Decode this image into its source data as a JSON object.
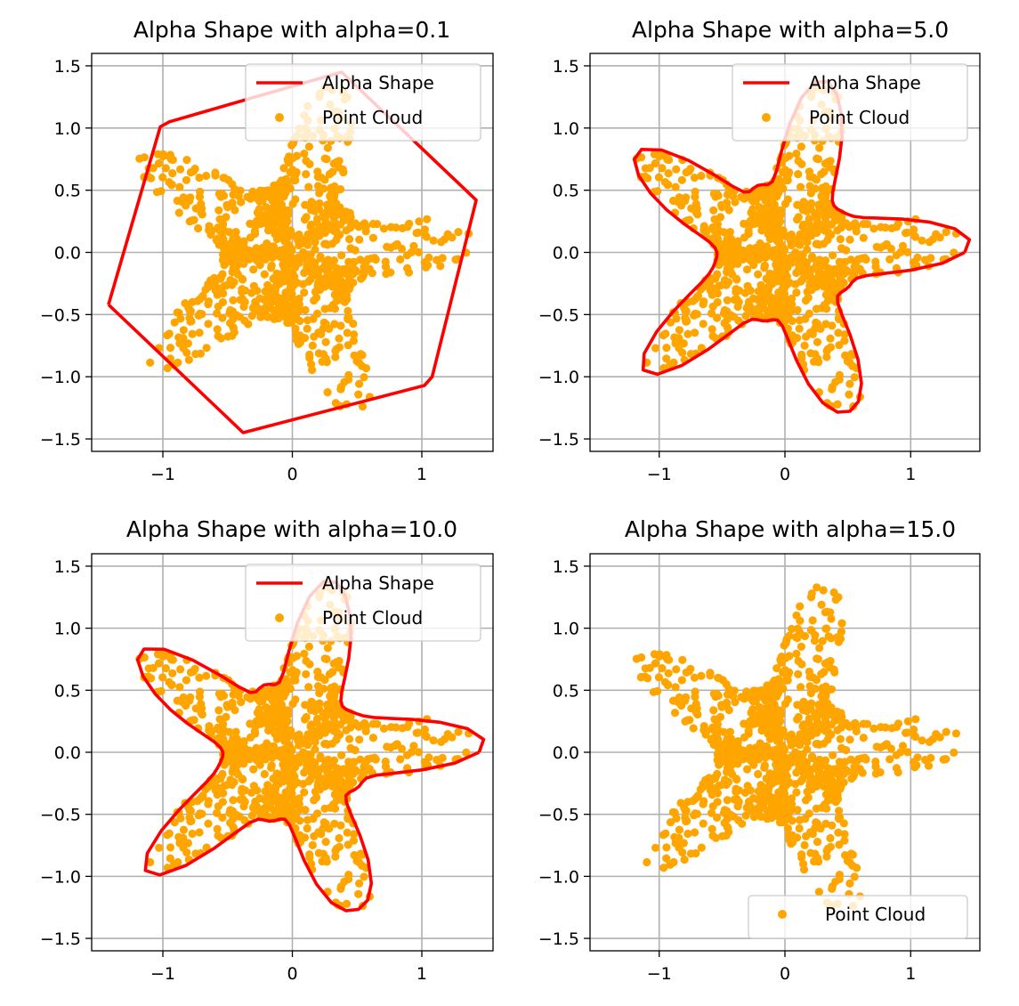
{
  "chart_data": [
    {
      "type": "scatter",
      "title": "Alpha Shape with alpha=0.1",
      "alpha": 0.1,
      "xlim": [
        -1.55,
        1.55
      ],
      "ylim": [
        -1.6,
        1.6
      ],
      "xticks": [
        -1,
        0,
        1
      ],
      "yticks": [
        -1.5,
        -1.0,
        -0.5,
        0.0,
        0.5,
        1.0,
        1.5
      ],
      "grid": true,
      "show_hull": true,
      "legend": {
        "position": "upper right",
        "entries": [
          "Alpha Shape",
          "Point Cloud"
        ]
      },
      "series": [
        {
          "name": "Alpha Shape",
          "kind": "line",
          "color": "#ff0000",
          "points": [
            [
              -1.42,
              -0.42
            ],
            [
              -1.02,
              1.01
            ],
            [
              -0.95,
              1.05
            ],
            [
              0.38,
              1.45
            ],
            [
              1.42,
              0.42
            ],
            [
              1.08,
              -1.0
            ],
            [
              1.02,
              -1.07
            ],
            [
              -0.38,
              -1.45
            ],
            [
              -1.42,
              -0.42
            ]
          ]
        },
        {
          "name": "Point Cloud",
          "kind": "scatter",
          "color": "#ffa500",
          "shape": "star",
          "arms": 5,
          "count": 1000
        }
      ]
    },
    {
      "type": "scatter",
      "title": "Alpha Shape with alpha=5.0",
      "alpha": 5.0,
      "xlim": [
        -1.55,
        1.55
      ],
      "ylim": [
        -1.6,
        1.6
      ],
      "xticks": [
        -1,
        0,
        1
      ],
      "yticks": [
        -1.5,
        -1.0,
        -0.5,
        0.0,
        0.5,
        1.0,
        1.5
      ],
      "grid": true,
      "show_hull": true,
      "legend": {
        "position": "upper right",
        "entries": [
          "Alpha Shape",
          "Point Cloud"
        ]
      },
      "series": [
        {
          "name": "Alpha Shape",
          "kind": "line",
          "color": "#ff0000",
          "concavity": 0.8
        },
        {
          "name": "Point Cloud",
          "kind": "scatter",
          "color": "#ffa500",
          "shape": "star",
          "arms": 5,
          "count": 1000
        }
      ]
    },
    {
      "type": "scatter",
      "title": "Alpha Shape with alpha=10.0",
      "alpha": 10.0,
      "xlim": [
        -1.55,
        1.55
      ],
      "ylim": [
        -1.6,
        1.6
      ],
      "xticks": [
        -1,
        0,
        1
      ],
      "yticks": [
        -1.5,
        -1.0,
        -0.5,
        0.0,
        0.5,
        1.0,
        1.5
      ],
      "grid": true,
      "show_hull": true,
      "legend": {
        "position": "upper right",
        "entries": [
          "Alpha Shape",
          "Point Cloud"
        ]
      },
      "series": [
        {
          "name": "Alpha Shape",
          "kind": "line",
          "color": "#ff0000",
          "concavity": 1.0
        },
        {
          "name": "Point Cloud",
          "kind": "scatter",
          "color": "#ffa500",
          "shape": "star",
          "arms": 5,
          "count": 1000
        }
      ]
    },
    {
      "type": "scatter",
      "title": "Alpha Shape with alpha=15.0",
      "alpha": 15.0,
      "xlim": [
        -1.55,
        1.55
      ],
      "ylim": [
        -1.6,
        1.6
      ],
      "xticks": [
        -1,
        0,
        1
      ],
      "yticks": [
        -1.5,
        -1.0,
        -0.5,
        0.0,
        0.5,
        1.0,
        1.5
      ],
      "grid": true,
      "show_hull": false,
      "legend": {
        "position": "lower right",
        "entries": [
          "Point Cloud"
        ]
      },
      "series": [
        {
          "name": "Point Cloud",
          "kind": "scatter",
          "color": "#ffa500",
          "shape": "star",
          "arms": 5,
          "count": 1000
        }
      ]
    }
  ]
}
